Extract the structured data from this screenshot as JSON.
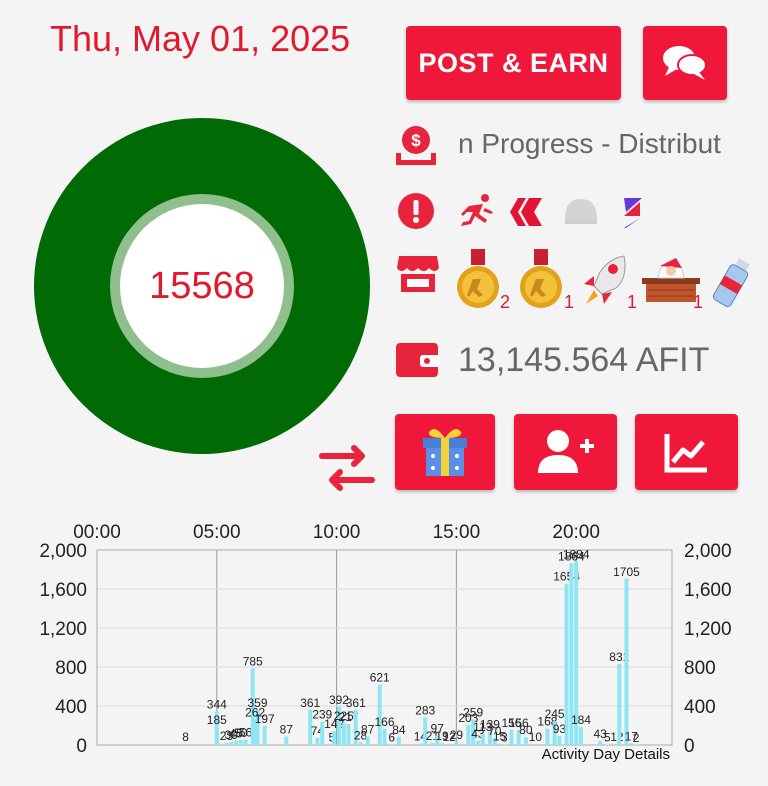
{
  "header": {
    "date": "Thu, May 01, 2025",
    "post_earn_label": "POST & EARN"
  },
  "icons": {
    "chat": "chat-bubbles-icon",
    "payout": "dollar-payout-icon",
    "alert": "alert-circle-icon",
    "store": "store-icon",
    "wallet": "wallet-icon",
    "swap": "swap-arrows-icon",
    "gift": "gift-icon",
    "add_user": "add-user-icon",
    "stats": "line-chart-icon"
  },
  "donut": {
    "value": "15568",
    "colors": {
      "outer": "#006a04",
      "ring": "#8fbf8d",
      "center": "#ffffff"
    }
  },
  "status": {
    "progress_text": "n Progress - Distribut"
  },
  "store_items": [
    {
      "name": "gold-medal-icon",
      "count": "2"
    },
    {
      "name": "gold-medal-icon",
      "count": "1"
    },
    {
      "name": "rocket-icon",
      "count": "1"
    },
    {
      "name": "santa-chimney-icon",
      "count": "1"
    },
    {
      "name": "water-bottle-icon",
      "count": ""
    }
  ],
  "wallet": {
    "balance": "13,145.564 AFIT"
  },
  "colors": {
    "accent": "#f0183a",
    "bar": "#8ee6f5",
    "text_red": "#e0192d"
  },
  "chart_data": {
    "type": "bar",
    "title": "Activity Day Details",
    "x_tick_labels": [
      "00:00",
      "05:00",
      "10:00",
      "15:00",
      "20:00"
    ],
    "y_tick_labels": [
      "0",
      "400",
      "800",
      "1,200",
      "1,600",
      "2,000"
    ],
    "ylim": [
      0,
      2000
    ],
    "xlim": [
      0,
      24
    ],
    "grid": true,
    "bars": [
      {
        "x": 3.7,
        "v": 8,
        "label": "8"
      },
      {
        "x": 5.0,
        "v": 344,
        "label": "344"
      },
      {
        "x": 5.0,
        "v": 185,
        "label": "185"
      },
      {
        "x": 5.4,
        "v": 23,
        "label": "23"
      },
      {
        "x": 5.6,
        "v": 30,
        "label": "30"
      },
      {
        "x": 5.8,
        "v": 45,
        "label": "45"
      },
      {
        "x": 6.0,
        "v": 50,
        "label": "50"
      },
      {
        "x": 6.2,
        "v": 56,
        "label": "56"
      },
      {
        "x": 6.5,
        "v": 785,
        "label": "785"
      },
      {
        "x": 6.7,
        "v": 359,
        "label": "359"
      },
      {
        "x": 6.6,
        "v": 262,
        "label": "262"
      },
      {
        "x": 7.0,
        "v": 197,
        "label": "197"
      },
      {
        "x": 7.9,
        "v": 87,
        "label": "87"
      },
      {
        "x": 8.9,
        "v": 361,
        "label": "361"
      },
      {
        "x": 9.2,
        "v": 74,
        "label": "74"
      },
      {
        "x": 9.4,
        "v": 239,
        "label": "239"
      },
      {
        "x": 9.8,
        "v": 5,
        "label": "5"
      },
      {
        "x": 9.9,
        "v": 142,
        "label": "142"
      },
      {
        "x": 10.1,
        "v": 392,
        "label": "392"
      },
      {
        "x": 10.3,
        "v": 225,
        "label": "225"
      },
      {
        "x": 10.5,
        "v": 217,
        "label": "217"
      },
      {
        "x": 10.8,
        "v": 361,
        "label": "361"
      },
      {
        "x": 11.0,
        "v": 28,
        "label": "28"
      },
      {
        "x": 11.3,
        "v": 87,
        "label": "87"
      },
      {
        "x": 11.8,
        "v": 621,
        "label": "621"
      },
      {
        "x": 12.0,
        "v": 166,
        "label": "166"
      },
      {
        "x": 12.3,
        "v": 6,
        "label": "6"
      },
      {
        "x": 12.6,
        "v": 84,
        "label": "84"
      },
      {
        "x": 13.5,
        "v": 14,
        "label": "14"
      },
      {
        "x": 13.7,
        "v": 283,
        "label": "283"
      },
      {
        "x": 14.0,
        "v": 21,
        "label": "21"
      },
      {
        "x": 14.2,
        "v": 97,
        "label": "97"
      },
      {
        "x": 14.4,
        "v": 19,
        "label": "19"
      },
      {
        "x": 14.7,
        "v": 12,
        "label": "12"
      },
      {
        "x": 15.0,
        "v": 29,
        "label": "29"
      },
      {
        "x": 15.5,
        "v": 203,
        "label": "203"
      },
      {
        "x": 15.7,
        "v": 259,
        "label": "259"
      },
      {
        "x": 15.9,
        "v": 43,
        "label": "43"
      },
      {
        "x": 16.1,
        "v": 113,
        "label": "113"
      },
      {
        "x": 16.4,
        "v": 139,
        "label": "139"
      },
      {
        "x": 16.6,
        "v": 70,
        "label": "70"
      },
      {
        "x": 16.8,
        "v": 15,
        "label": "15"
      },
      {
        "x": 17.0,
        "v": 3,
        "label": "3"
      },
      {
        "x": 17.3,
        "v": 156,
        "label": "156"
      },
      {
        "x": 17.6,
        "v": 156,
        "label": "156"
      },
      {
        "x": 17.9,
        "v": 80,
        "label": "80"
      },
      {
        "x": 18.3,
        "v": 10,
        "label": "10"
      },
      {
        "x": 18.8,
        "v": 168,
        "label": "168"
      },
      {
        "x": 19.1,
        "v": 245,
        "label": "245"
      },
      {
        "x": 19.3,
        "v": 93,
        "label": "93"
      },
      {
        "x": 19.6,
        "v": 1654,
        "label": "1654"
      },
      {
        "x": 19.8,
        "v": 1864,
        "label": "1864"
      },
      {
        "x": 20.0,
        "v": 1884,
        "label": "1884"
      },
      {
        "x": 20.2,
        "v": 184,
        "label": "184"
      },
      {
        "x": 21.0,
        "v": 43,
        "label": "43"
      },
      {
        "x": 21.3,
        "v": 5,
        "label": "5"
      },
      {
        "x": 21.7,
        "v": 12,
        "label": "12"
      },
      {
        "x": 21.8,
        "v": 831,
        "label": "831"
      },
      {
        "x": 22.1,
        "v": 1705,
        "label": "1705"
      },
      {
        "x": 22.3,
        "v": 17,
        "label": "17"
      },
      {
        "x": 22.5,
        "v": 2,
        "label": "2"
      }
    ]
  }
}
